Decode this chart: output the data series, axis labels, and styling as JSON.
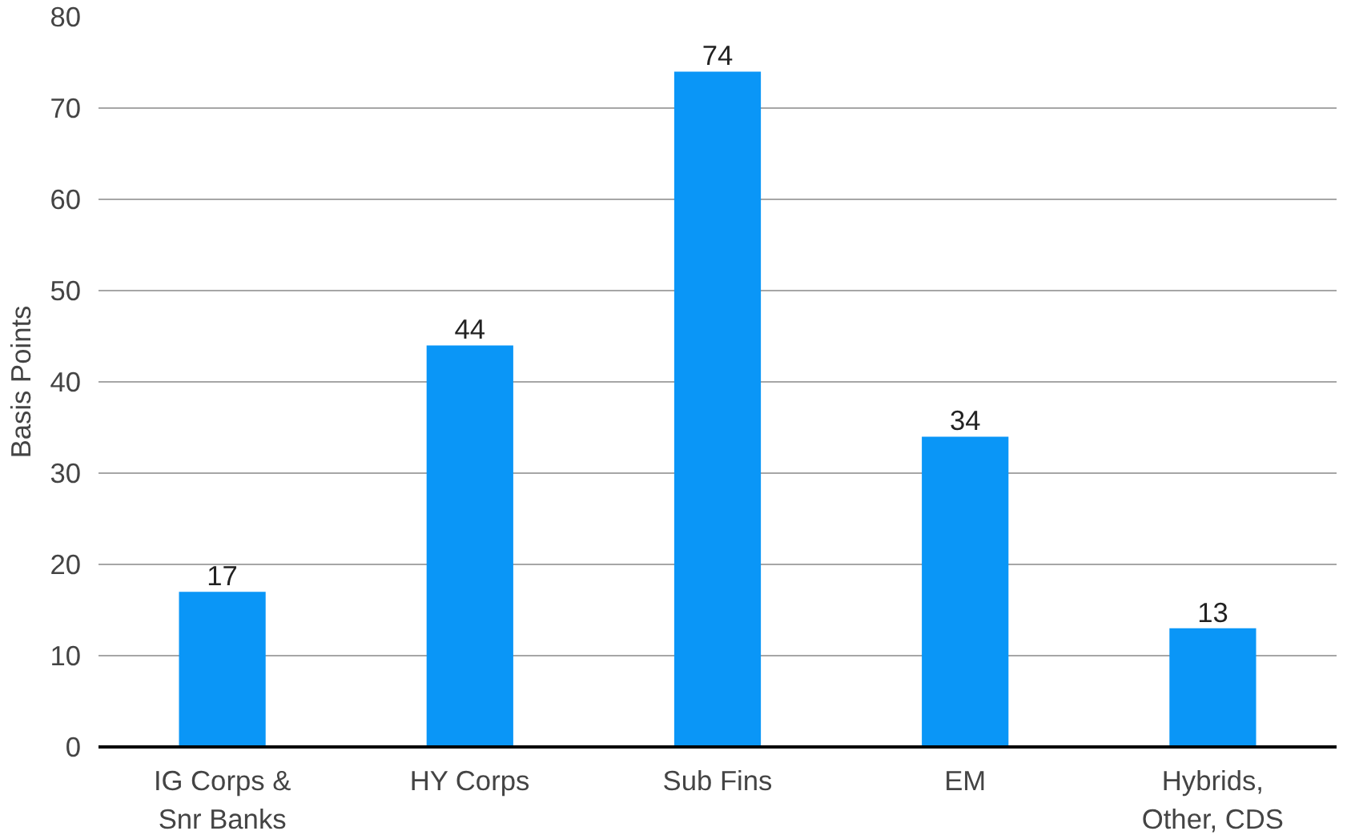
{
  "chart_data": {
    "type": "bar",
    "ylabel": "Basis Points",
    "categories": [
      "IG Corps & Snr Banks",
      "HY Corps",
      "Sub Fins",
      "EM",
      "Hybrids, Other, CDS"
    ],
    "values": [
      17,
      44,
      74,
      34,
      13
    ],
    "color": "#0a96f7",
    "ylim": [
      0,
      80
    ],
    "yticks": [
      0,
      10,
      20,
      30,
      40,
      50,
      60,
      70,
      80
    ],
    "grid": "y",
    "data_labels": true
  }
}
